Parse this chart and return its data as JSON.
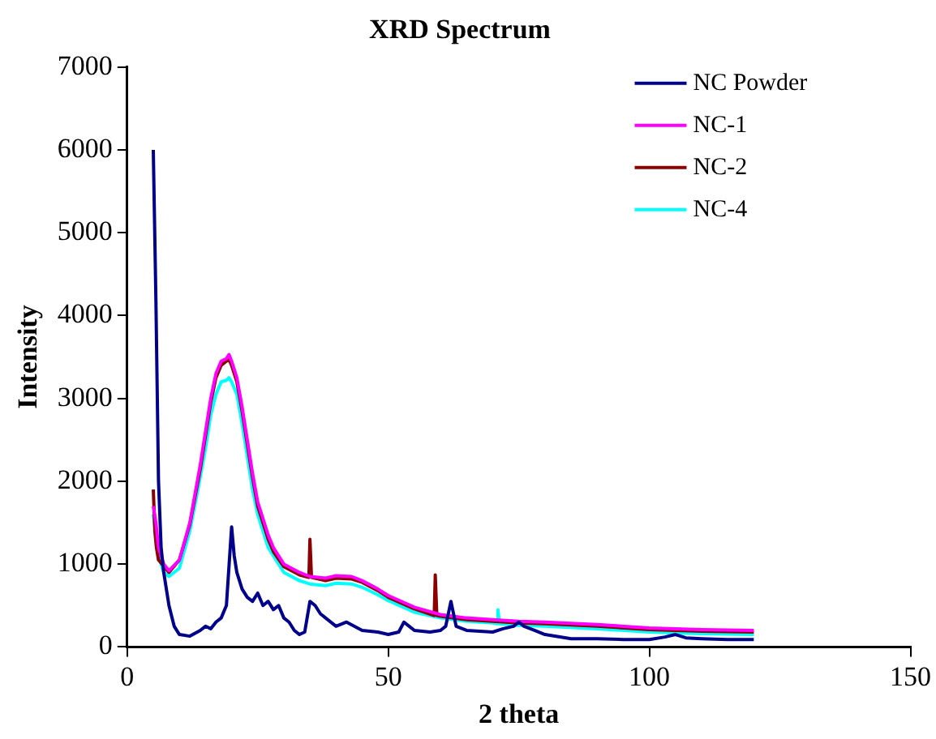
{
  "chart_data": {
    "type": "line",
    "title": "XRD Spectrum",
    "xlabel": "2 theta",
    "ylabel": "Intensity",
    "xlim": [
      0,
      150
    ],
    "xticks": [
      0,
      50,
      100,
      150
    ],
    "ylim": [
      0,
      7000
    ],
    "yticks": [
      0,
      1000,
      2000,
      3000,
      4000,
      5000,
      6000,
      7000
    ],
    "grid": false,
    "legend": "top right",
    "marker": "none",
    "line_style": "solid",
    "series": [
      {
        "name": "NC Powder",
        "color": "#00008b",
        "x": [
          5,
          5.5,
          6,
          6.5,
          7,
          8,
          9,
          10,
          12,
          14,
          15,
          16,
          17,
          18,
          19,
          20,
          20.5,
          21,
          22,
          23,
          24,
          25,
          26,
          27,
          28,
          29,
          30,
          31,
          32,
          33,
          34,
          35,
          36,
          37,
          38,
          40,
          42,
          45,
          48,
          50,
          52,
          53,
          54,
          55,
          58,
          60,
          61,
          62,
          63,
          65,
          70,
          72,
          74,
          75,
          76,
          78,
          80,
          85,
          90,
          95,
          100,
          103,
          105,
          107,
          110,
          115,
          120
        ],
        "values": [
          6000,
          4200,
          2000,
          1200,
          900,
          500,
          250,
          150,
          130,
          200,
          250,
          220,
          300,
          350,
          500,
          1450,
          1100,
          900,
          700,
          600,
          550,
          650,
          500,
          550,
          450,
          500,
          350,
          300,
          200,
          150,
          180,
          550,
          500,
          400,
          350,
          250,
          300,
          200,
          180,
          150,
          180,
          300,
          250,
          200,
          180,
          200,
          250,
          550,
          250,
          200,
          180,
          220,
          250,
          300,
          250,
          200,
          150,
          100,
          100,
          90,
          90,
          120,
          150,
          110,
          100,
          90,
          90
        ]
      },
      {
        "name": "NC-1",
        "color": "#ff00ff",
        "x": [
          5,
          5.5,
          6,
          7,
          8,
          10,
          12,
          14,
          15,
          16,
          17,
          18,
          19,
          19.5,
          20,
          21,
          22,
          23,
          24,
          25,
          27,
          28,
          30,
          33,
          35,
          38,
          40,
          43,
          45,
          48,
          50,
          55,
          60,
          65,
          70,
          75,
          80,
          90,
          100,
          110,
          120
        ],
        "values": [
          1700,
          1500,
          1200,
          1000,
          920,
          1050,
          1500,
          2200,
          2600,
          3000,
          3300,
          3450,
          3480,
          3530,
          3450,
          3250,
          2900,
          2500,
          2100,
          1750,
          1350,
          1200,
          1000,
          900,
          850,
          830,
          860,
          850,
          800,
          700,
          620,
          480,
          390,
          350,
          330,
          310,
          300,
          270,
          230,
          210,
          200
        ]
      },
      {
        "name": "NC-2",
        "color": "#8b0000",
        "x": [
          5,
          5.3,
          5.6,
          6,
          8,
          10,
          12,
          14,
          15,
          16,
          17,
          18,
          19,
          19.5,
          20,
          21,
          22,
          23,
          24,
          25,
          27,
          28,
          30,
          33,
          34.8,
          35,
          35.3,
          38,
          40,
          43,
          45,
          48,
          50,
          55,
          58.8,
          59,
          59.3,
          60,
          65,
          70,
          75,
          80,
          90,
          100,
          110,
          120
        ],
        "values": [
          1900,
          1400,
          1200,
          1050,
          900,
          1050,
          1480,
          2150,
          2550,
          2950,
          3250,
          3400,
          3450,
          3470,
          3400,
          3200,
          2850,
          2450,
          2050,
          1700,
          1300,
          1150,
          970,
          870,
          840,
          1300,
          840,
          800,
          830,
          820,
          780,
          680,
          600,
          460,
          380,
          870,
          380,
          370,
          330,
          310,
          290,
          280,
          250,
          210,
          190,
          180
        ]
      },
      {
        "name": "NC-4",
        "color": "#00ffff",
        "x": [
          5,
          6,
          7,
          8,
          10,
          12,
          14,
          15,
          16,
          17,
          18,
          19,
          19.5,
          20,
          21,
          22,
          23,
          24,
          25,
          27,
          28,
          30,
          33,
          35,
          38,
          40,
          43,
          45,
          48,
          50,
          55,
          60,
          65,
          70,
          70.8,
          71,
          71.3,
          75,
          80,
          90,
          100,
          110,
          120
        ],
        "values": [
          1600,
          1100,
          900,
          850,
          950,
          1400,
          2050,
          2400,
          2800,
          3050,
          3200,
          3220,
          3250,
          3200,
          3050,
          2700,
          2300,
          1900,
          1600,
          1200,
          1100,
          900,
          800,
          760,
          740,
          770,
          760,
          720,
          630,
          560,
          420,
          350,
          310,
          290,
          280,
          450,
          280,
          260,
          250,
          220,
          180,
          160,
          150
        ]
      }
    ]
  }
}
